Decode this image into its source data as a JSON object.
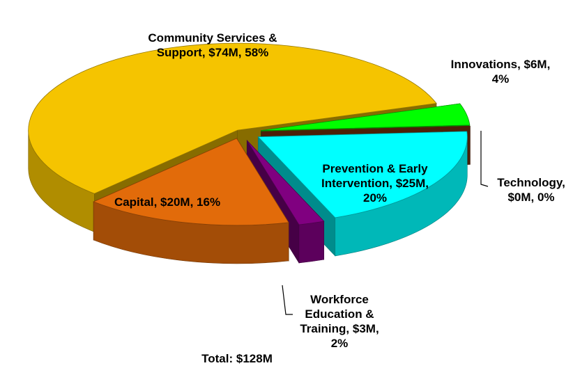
{
  "chart_data": {
    "type": "pie3d",
    "values": [
      4,
      0,
      20,
      2,
      16,
      58
    ],
    "value_labels": [
      "Innovations, $6M, 4%",
      "Technology, $0M, 0%",
      "Prevention & Early Intervention, $25M, 20%",
      "Workforce Education & Training, $3M, 2%",
      "Capital, $20M, 16%",
      "Community Services & Support, $74M, 58%"
    ],
    "colors": [
      "#00ff00",
      "#8b3a0f",
      "#00ffff",
      "#800080",
      "#e26b0a",
      "#f5c400"
    ],
    "total_label": "Total: $128M"
  }
}
